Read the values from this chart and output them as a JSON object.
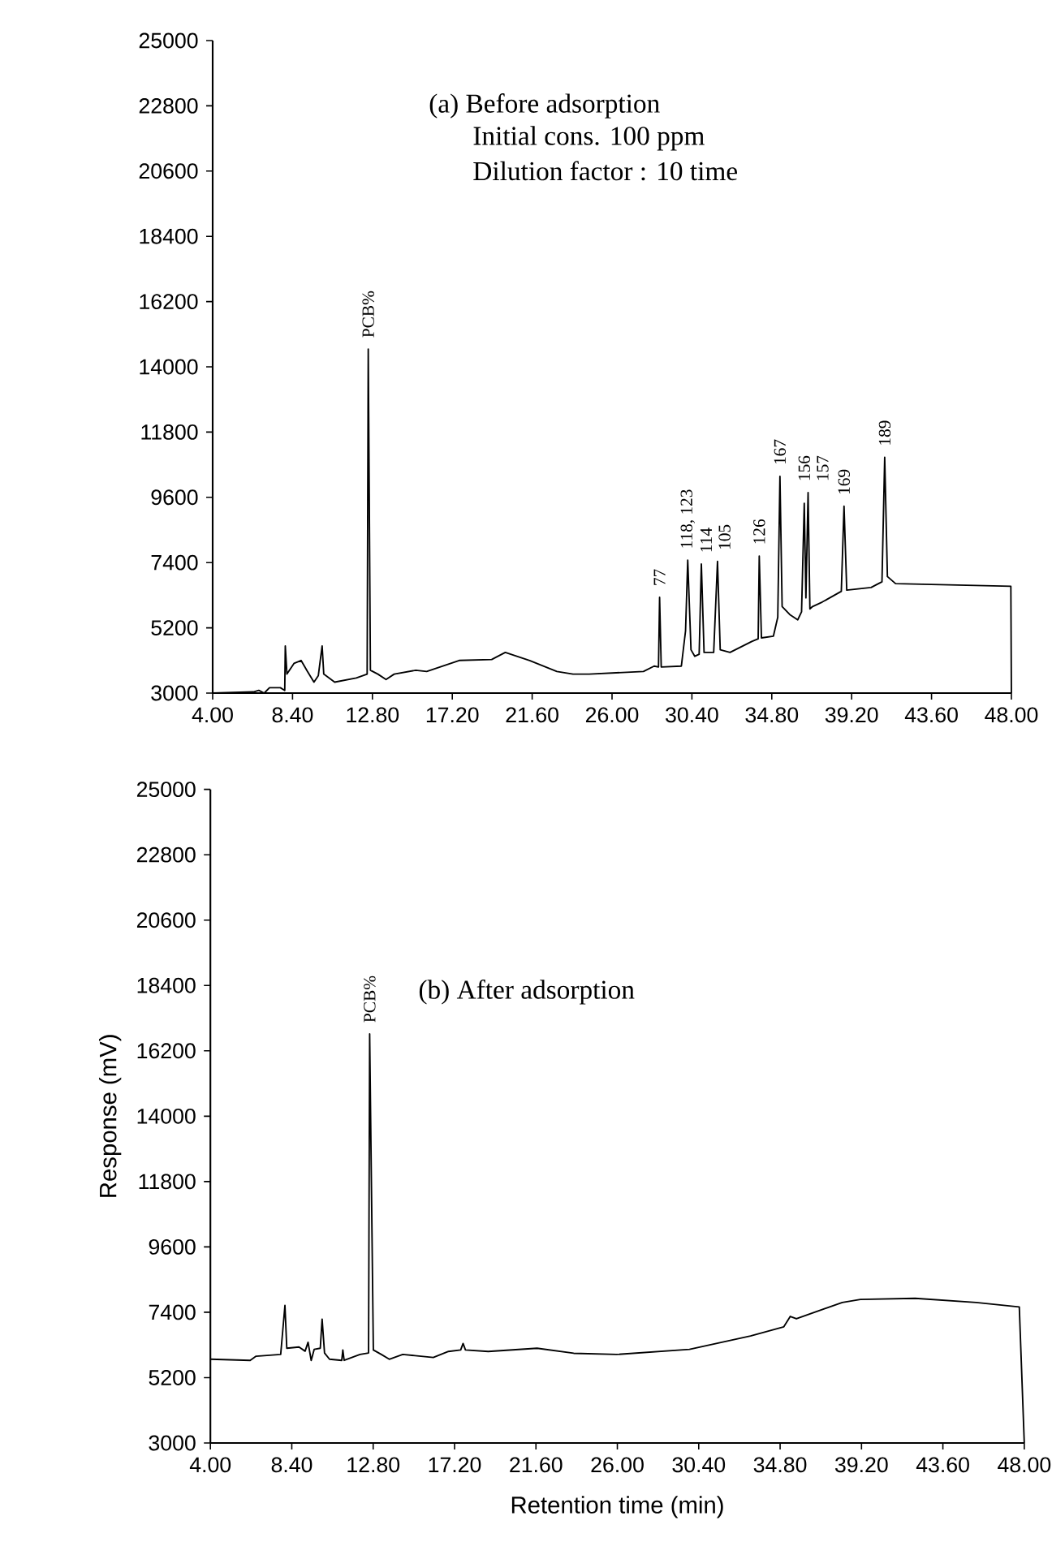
{
  "chart_data": [
    {
      "type": "line",
      "title": "(a) Before adsorption",
      "annotations": [
        "Initial cons. 100 ppm",
        "Dilution factor : 10 time",
        {
          "text": "PCB%",
          "x": 12.57,
          "y": 14600
        },
        {
          "text": "77",
          "x": 28.62,
          "y": 6230
        },
        {
          "text": "118, 123",
          "x": 30.17,
          "y": 7480
        },
        {
          "text": "114",
          "x": 30.92,
          "y": 7350
        },
        {
          "text": "105",
          "x": 31.81,
          "y": 7440
        },
        {
          "text": "126",
          "x": 34.11,
          "y": 7620
        },
        {
          "text": "167",
          "x": 35.25,
          "y": 10310
        },
        {
          "text": "156",
          "x": 36.59,
          "y": 9400
        },
        {
          "text": "157",
          "x": 36.8,
          "y": 9760
        },
        {
          "text": "169",
          "x": 38.78,
          "y": 9300
        },
        {
          "text": "189",
          "x": 41.02,
          "y": 10950
        }
      ],
      "x": [
        4.0,
        6.24,
        6.54,
        6.84,
        7.13,
        7.73,
        7.97,
        8.0,
        8.09,
        8.48,
        8.87,
        9.22,
        9.58,
        9.82,
        10.03,
        10.12,
        10.72,
        11.91,
        12.51,
        12.57,
        12.69,
        13.1,
        13.55,
        14.0,
        15.19,
        15.79,
        17.58,
        19.37,
        20.12,
        21.46,
        22.96,
        23.85,
        24.74,
        27.73,
        28.32,
        28.56,
        28.62,
        28.71,
        29.82,
        30.05,
        30.17,
        30.35,
        30.56,
        30.8,
        30.92,
        31.07,
        31.6,
        31.81,
        31.96,
        32.5,
        33.7,
        34.05,
        34.11,
        34.23,
        34.89,
        35.13,
        35.25,
        35.37,
        35.79,
        36.23,
        36.44,
        36.59,
        36.68,
        36.8,
        36.9,
        37.05,
        37.58,
        38.63,
        38.78,
        38.93,
        40.27,
        40.87,
        41.02,
        41.17,
        41.62,
        47.97,
        48.0
      ],
      "series": [
        {
          "color": "#000000",
          "values": [
            3000,
            3040,
            3090,
            3000,
            3180,
            3180,
            3090,
            4590,
            3640,
            4000,
            4100,
            3730,
            3370,
            3590,
            4590,
            3640,
            3370,
            3510,
            3640,
            14600,
            3770,
            3640,
            3460,
            3640,
            3770,
            3730,
            4100,
            4130,
            4370,
            4100,
            3730,
            3640,
            3640,
            3730,
            3910,
            3880,
            6230,
            3880,
            3910,
            5100,
            7480,
            4460,
            4240,
            4310,
            7350,
            4370,
            4370,
            7440,
            4460,
            4370,
            4740,
            4830,
            7620,
            4860,
            4920,
            5560,
            10310,
            5920,
            5650,
            5470,
            5740,
            9400,
            6210,
            9760,
            5840,
            5920,
            6070,
            6430,
            9300,
            6470,
            6560,
            6750,
            10950,
            6930,
            6690,
            6600,
            3000
          ]
        }
      ],
      "xlim": [
        4,
        48
      ],
      "ylim": [
        3000,
        25000
      ],
      "xticks": [
        {
          "value": 4,
          "label": "4.00"
        },
        {
          "value": 8.4,
          "label": "8.40"
        },
        {
          "value": 12.8,
          "label": "12.80"
        },
        {
          "value": 17.2,
          "label": "17.20"
        },
        {
          "value": 21.6,
          "label": "21.60"
        },
        {
          "value": 26,
          "label": "26.00"
        },
        {
          "value": 30.4,
          "label": "30.40"
        },
        {
          "value": 34.8,
          "label": "34.80"
        },
        {
          "value": 39.2,
          "label": "39.20"
        },
        {
          "value": 43.6,
          "label": "43.60"
        },
        {
          "value": 48,
          "label": "48.00"
        }
      ],
      "yticks": [
        3000,
        5200,
        7400,
        9600,
        11800,
        14000,
        16200,
        18400,
        20600,
        22800,
        25000
      ],
      "grid": false,
      "marker": "none",
      "line_style": "solid"
    },
    {
      "type": "line",
      "title": "(b) After adsorption",
      "xlabel": "Retention time (min)",
      "ylabel": "Response (mV)",
      "annotations": [
        {
          "text": "PCB%",
          "x": 12.61,
          "y": 16770
        }
      ],
      "x": [
        4.0,
        6.15,
        6.47,
        7.8,
        8.03,
        8.13,
        8.79,
        9.12,
        9.28,
        9.45,
        9.61,
        9.94,
        10.04,
        10.17,
        10.44,
        11.1,
        11.16,
        11.23,
        12.09,
        12.55,
        12.61,
        12.81,
        13.24,
        13.67,
        14.4,
        15.06,
        16.05,
        16.87,
        17.53,
        17.66,
        17.79,
        19.02,
        21.66,
        23.64,
        25.95,
        29.9,
        30.9,
        33.2,
        35.0,
        35.35,
        35.68,
        38.16,
        39.14,
        42.1,
        45.4,
        47.73,
        48.0
      ],
      "series": [
        {
          "color": "#000000",
          "values": [
            5820,
            5780,
            5920,
            5980,
            7630,
            6190,
            6230,
            6090,
            6390,
            5780,
            6150,
            6190,
            7170,
            6030,
            5820,
            5780,
            6130,
            5780,
            5980,
            6030,
            16770,
            6130,
            5980,
            5820,
            5980,
            5940,
            5880,
            6080,
            6130,
            6350,
            6130,
            6080,
            6190,
            6020,
            5980,
            6150,
            6290,
            6600,
            6910,
            7260,
            7180,
            7730,
            7830,
            7870,
            7730,
            7580,
            3000
          ]
        }
      ],
      "xlim": [
        4,
        48
      ],
      "ylim": [
        3000,
        25000
      ],
      "xticks": [
        {
          "value": 4,
          "label": "4.00"
        },
        {
          "value": 8.4,
          "label": "8.40"
        },
        {
          "value": 12.8,
          "label": "12.80"
        },
        {
          "value": 17.2,
          "label": "17.20"
        },
        {
          "value": 21.6,
          "label": "21.60"
        },
        {
          "value": 26,
          "label": "26.00"
        },
        {
          "value": 30.4,
          "label": "30.40"
        },
        {
          "value": 34.8,
          "label": "34.80"
        },
        {
          "value": 39.2,
          "label": "39.20"
        },
        {
          "value": 43.6,
          "label": "43.60"
        },
        {
          "value": 48,
          "label": "48.00"
        }
      ],
      "yticks": [
        3000,
        5200,
        7400,
        9600,
        11800,
        14000,
        16200,
        18400,
        20600,
        22800,
        25000
      ],
      "grid": false,
      "marker": "none",
      "line_style": "solid"
    }
  ]
}
